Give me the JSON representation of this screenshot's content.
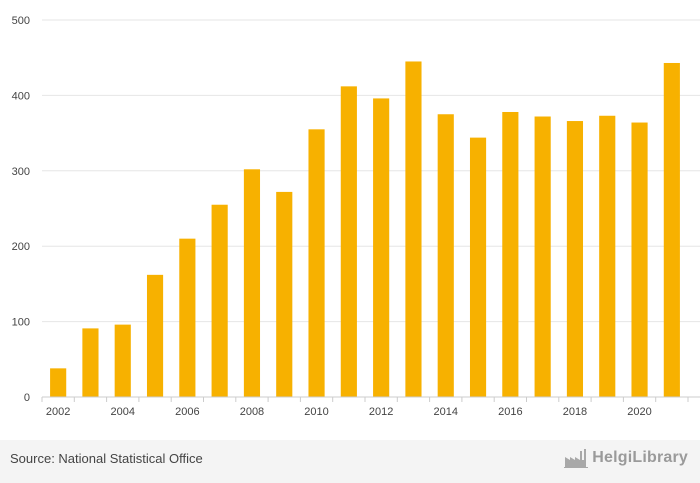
{
  "chart_data": {
    "type": "bar",
    "title": "",
    "xlabel": "",
    "ylabel": "",
    "categories": [
      "2002",
      "2003",
      "2004",
      "2005",
      "2006",
      "2007",
      "2008",
      "2009",
      "2010",
      "2011",
      "2012",
      "2013",
      "2014",
      "2015",
      "2016",
      "2017",
      "2018",
      "2019",
      "2020",
      "2021"
    ],
    "x_tick_labels": [
      "2002",
      "2004",
      "2006",
      "2008",
      "2010",
      "2012",
      "2014",
      "2016",
      "2018",
      "2020"
    ],
    "values": [
      38,
      91,
      96,
      162,
      210,
      255,
      302,
      272,
      355,
      412,
      396,
      445,
      375,
      344,
      378,
      372,
      366,
      373,
      364,
      443
    ],
    "ylim": [
      0,
      500
    ],
    "yticks": [
      0,
      100,
      200,
      300,
      400,
      500
    ],
    "bar_color": "#f7b100",
    "grid": true
  },
  "footer": {
    "source": "Source: National Statistical Office",
    "brand": "HelgiLibrary",
    "logo_icon": "factory-icon"
  }
}
